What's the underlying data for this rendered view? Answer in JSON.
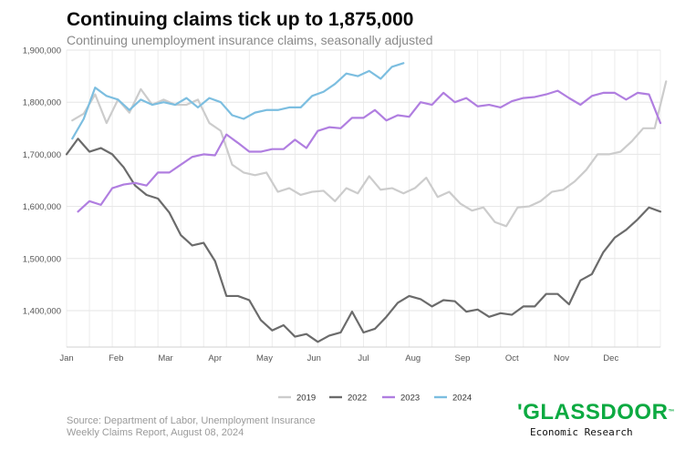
{
  "chart_data": {
    "type": "line",
    "title": "Continuing claims tick up to 1,875,000",
    "subtitle": "Continuing unemployment insurance claims, seasonally adjusted",
    "xlabel": "",
    "ylabel": "",
    "x_ticks": [
      "Jan",
      "Feb",
      "Mar",
      "Apr",
      "May",
      "Jun",
      "Jul",
      "Aug",
      "Sep",
      "Oct",
      "Nov",
      "Dec"
    ],
    "y_ticks": [
      "1,400,000",
      "1,500,000",
      "1,600,000",
      "1,700,000",
      "1,800,000",
      "1,900,000"
    ],
    "y_tick_values": [
      1400000,
      1500000,
      1600000,
      1700000,
      1800000,
      1900000
    ],
    "ylim": [
      1330000,
      1900000
    ],
    "xlim_weeks": [
      0,
      52
    ],
    "legend_position": "bottom",
    "grid": true,
    "series": [
      {
        "name": "2019",
        "color": "#cccccc",
        "start_week": 0.5,
        "values": [
          1765000,
          1778000,
          1815000,
          1760000,
          1805000,
          1780000,
          1825000,
          1795000,
          1805000,
          1795000,
          1795000,
          1805000,
          1760000,
          1745000,
          1680000,
          1665000,
          1660000,
          1665000,
          1628000,
          1635000,
          1622000,
          1628000,
          1630000,
          1610000,
          1635000,
          1625000,
          1658000,
          1632000,
          1635000,
          1625000,
          1635000,
          1655000,
          1618000,
          1628000,
          1605000,
          1592000,
          1598000,
          1570000,
          1562000,
          1598000,
          1600000,
          1610000,
          1628000,
          1632000,
          1648000,
          1670000,
          1700000,
          1700000,
          1705000,
          1725000,
          1750000,
          1750000,
          1840000
        ]
      },
      {
        "name": "2022",
        "color": "#6b6b6b",
        "start_week": 0,
        "values": [
          1700000,
          1730000,
          1705000,
          1712000,
          1700000,
          1675000,
          1640000,
          1622000,
          1615000,
          1588000,
          1545000,
          1525000,
          1530000,
          1495000,
          1428000,
          1428000,
          1420000,
          1382000,
          1362000,
          1372000,
          1350000,
          1355000,
          1340000,
          1352000,
          1358000,
          1398000,
          1358000,
          1365000,
          1388000,
          1415000,
          1428000,
          1422000,
          1408000,
          1420000,
          1418000,
          1398000,
          1402000,
          1388000,
          1395000,
          1392000,
          1408000,
          1408000,
          1432000,
          1432000,
          1412000,
          1458000,
          1470000,
          1512000,
          1540000,
          1555000,
          1575000,
          1598000,
          1590000
        ]
      },
      {
        "name": "2023",
        "color": "#b07ee0",
        "start_week": 1,
        "values": [
          1590000,
          1610000,
          1603000,
          1635000,
          1642000,
          1645000,
          1640000,
          1665000,
          1665000,
          1680000,
          1695000,
          1700000,
          1698000,
          1738000,
          1722000,
          1705000,
          1705000,
          1710000,
          1710000,
          1728000,
          1712000,
          1745000,
          1752000,
          1750000,
          1770000,
          1770000,
          1785000,
          1765000,
          1775000,
          1772000,
          1800000,
          1795000,
          1818000,
          1800000,
          1808000,
          1792000,
          1795000,
          1790000,
          1802000,
          1808000,
          1810000,
          1815000,
          1822000,
          1808000,
          1795000,
          1812000,
          1818000,
          1818000,
          1805000,
          1818000,
          1815000,
          1760000
        ]
      },
      {
        "name": "2024",
        "color": "#7cbee0",
        "start_week": 0.5,
        "values": [
          1730000,
          1768000,
          1828000,
          1812000,
          1805000,
          1785000,
          1805000,
          1795000,
          1800000,
          1795000,
          1808000,
          1790000,
          1808000,
          1800000,
          1775000,
          1768000,
          1780000,
          1785000,
          1785000,
          1790000,
          1790000,
          1812000,
          1820000,
          1835000,
          1855000,
          1850000,
          1860000,
          1845000,
          1868000,
          1875000
        ]
      }
    ]
  },
  "source": {
    "line1": "Source: Department of Labor, Unemployment Insurance",
    "line2": "Weekly Claims Report, August 08, 2024"
  },
  "logo": {
    "wordmark": "GLASSDOOR",
    "tagline": "Economic Research"
  }
}
